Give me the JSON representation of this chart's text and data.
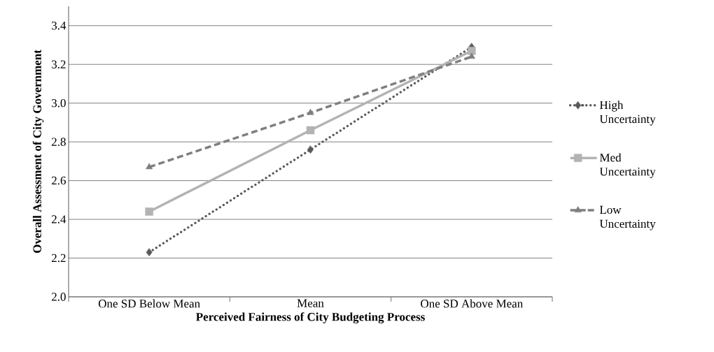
{
  "chart_data": {
    "type": "line",
    "xlabel": "Perceived Fairness of City Budgeting Process",
    "ylabel": "Overall  Assessment of City Government",
    "categories": [
      "One SD Below Mean",
      "Mean",
      "One SD Above Mean"
    ],
    "series": [
      {
        "name": "High Uncertainty",
        "color": "#595959",
        "marker": "diamond",
        "line_style": "dotted",
        "values": [
          2.23,
          2.76,
          3.29
        ]
      },
      {
        "name": "Med Uncertainty",
        "color": "#b3b3b3",
        "marker": "square",
        "line_style": "solid",
        "values": [
          2.44,
          2.86,
          3.27
        ]
      },
      {
        "name": "Low Uncertainty",
        "color": "#7f7f7f",
        "marker": "triangle",
        "line_style": "dashed",
        "values": [
          2.67,
          2.95,
          3.24
        ]
      }
    ],
    "ylim": [
      2.0,
      3.5
    ],
    "yticks": [
      {
        "value": 2.0,
        "label": "2.0"
      },
      {
        "value": 2.2,
        "label": "2.2"
      },
      {
        "value": 2.4,
        "label": "2.4"
      },
      {
        "value": 2.6,
        "label": "2.6"
      },
      {
        "value": 2.8,
        "label": "2.8"
      },
      {
        "value": 3.0,
        "label": "3.0"
      },
      {
        "value": 3.2,
        "label": "3.2"
      },
      {
        "value": 3.4,
        "label": "3.4"
      }
    ],
    "grid": "y",
    "legend": "right"
  }
}
